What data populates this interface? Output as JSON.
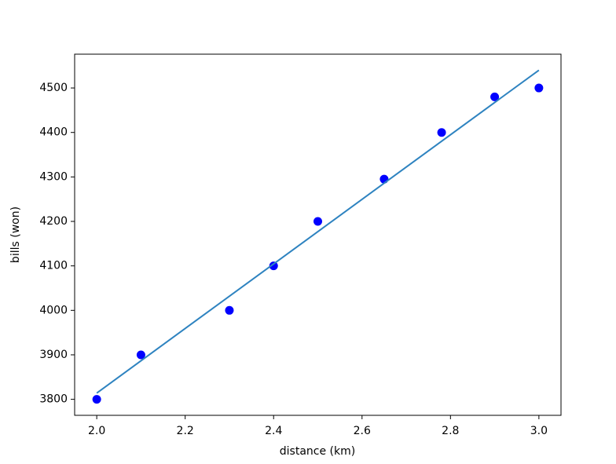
{
  "chart_data": {
    "type": "scatter",
    "xlabel": "distance (km)",
    "ylabel": "bills (won)",
    "series": [
      {
        "style": "markers",
        "color": "#0000ff",
        "x": [
          2.0,
          2.1,
          2.3,
          2.4,
          2.5,
          2.65,
          2.78,
          2.9,
          3.0
        ],
        "values": [
          3800,
          3900,
          4000,
          4100,
          4200,
          4295,
          4400,
          4480,
          4500
        ]
      },
      {
        "style": "line",
        "color": "#2e83c0",
        "x": [
          2.0,
          3.0
        ],
        "values": [
          3814,
          4540
        ]
      }
    ],
    "xlim": [
      1.95,
      3.05
    ],
    "ylim": [
      3764,
      4576
    ],
    "xticks": [
      {
        "value": 2.0,
        "label": "2.0"
      },
      {
        "value": 2.2,
        "label": "2.2"
      },
      {
        "value": 2.4,
        "label": "2.4"
      },
      {
        "value": 2.6,
        "label": "2.6"
      },
      {
        "value": 2.8,
        "label": "2.8"
      },
      {
        "value": 3.0,
        "label": "3.0"
      }
    ],
    "yticks": [
      3800,
      3900,
      4000,
      4100,
      4200,
      4300,
      4400,
      4500
    ]
  }
}
